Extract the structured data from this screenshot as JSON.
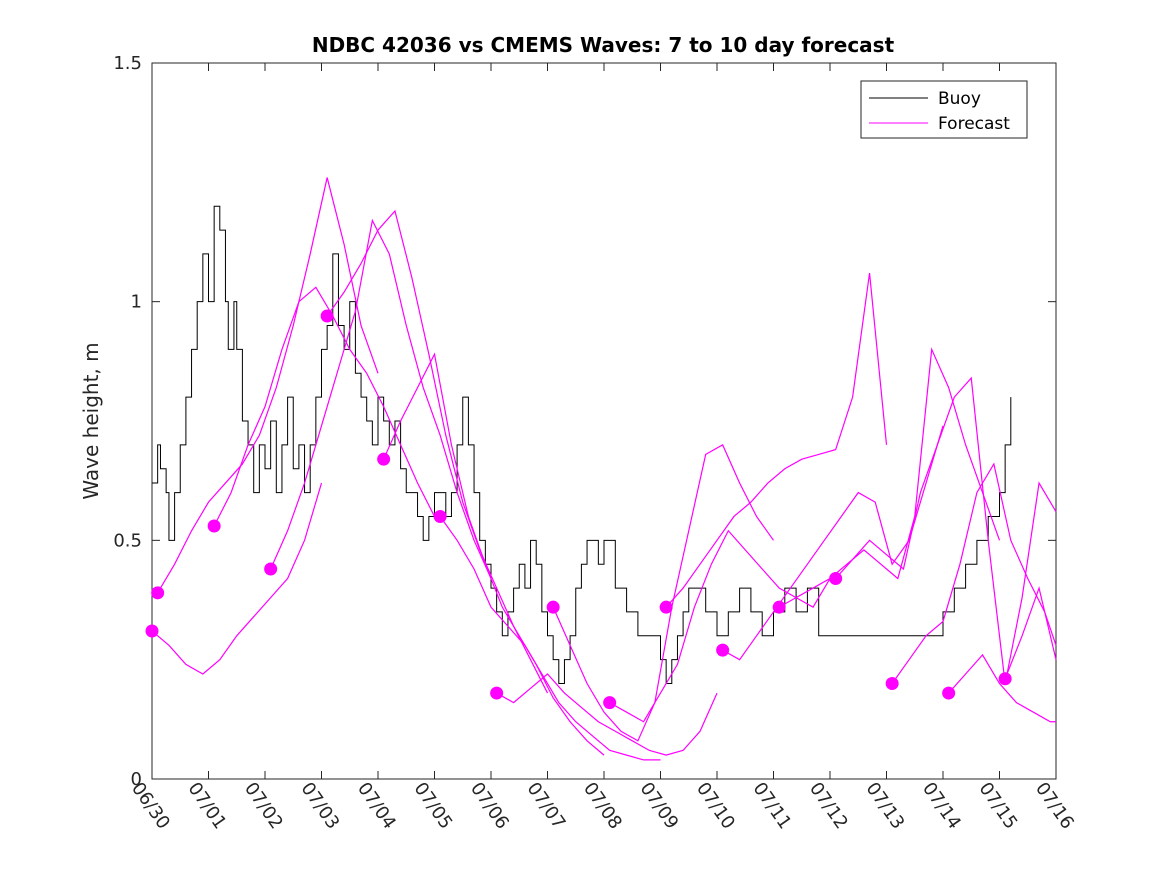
{
  "chart_data": {
    "type": "line",
    "title": "NDBC 42036 vs CMEMS Waves: 7 to 10 day forecast",
    "xlabel": "",
    "ylabel": "Wave height, m",
    "xlim": [
      0,
      16
    ],
    "ylim": [
      0,
      1.5
    ],
    "x_tick_values": [
      0,
      1,
      2,
      3,
      4,
      5,
      6,
      7,
      8,
      9,
      10,
      11,
      12,
      13,
      14,
      15,
      16
    ],
    "x_tick_labels": [
      "06/30",
      "07/01",
      "07/02",
      "07/03",
      "07/04",
      "07/05",
      "07/06",
      "07/07",
      "07/08",
      "07/09",
      "07/10",
      "07/11",
      "07/12",
      "07/13",
      "07/14",
      "07/15",
      "07/16"
    ],
    "y_tick_values": [
      0,
      0.5,
      1,
      1.5
    ],
    "y_tick_labels": [
      "0",
      "0.5",
      "1",
      "1.5"
    ],
    "grid": false,
    "legend_position": "top-right",
    "legend": [
      {
        "label": "Buoy",
        "color": "#000000"
      },
      {
        "label": "Forecast",
        "color": "#ff00ff"
      }
    ],
    "colors": {
      "buoy": "#000000",
      "forecast": "#ff00ff"
    },
    "buoy": {
      "x": [
        0.0,
        0.1,
        0.15,
        0.25,
        0.3,
        0.4,
        0.5,
        0.6,
        0.7,
        0.8,
        0.9,
        1.0,
        1.1,
        1.2,
        1.3,
        1.35,
        1.45,
        1.5,
        1.6,
        1.7,
        1.8,
        1.9,
        2.0,
        2.1,
        2.2,
        2.3,
        2.4,
        2.5,
        2.6,
        2.7,
        2.8,
        2.9,
        3.0,
        3.1,
        3.2,
        3.3,
        3.4,
        3.5,
        3.6,
        3.7,
        3.8,
        3.9,
        4.0,
        4.1,
        4.2,
        4.3,
        4.4,
        4.5,
        4.6,
        4.7,
        4.8,
        4.9,
        5.0,
        5.1,
        5.2,
        5.3,
        5.4,
        5.5,
        5.6,
        5.7,
        5.8,
        5.9,
        6.0,
        6.1,
        6.2,
        6.3,
        6.4,
        6.5,
        6.6,
        6.7,
        6.8,
        6.9,
        7.0,
        7.1,
        7.2,
        7.3,
        7.4,
        7.5,
        7.6,
        7.7,
        7.8,
        7.9,
        8.0,
        8.2,
        8.4,
        8.6,
        8.8,
        9.0,
        9.1,
        9.2,
        9.3,
        9.4,
        9.5,
        9.6,
        9.8,
        10.0,
        10.2,
        10.4,
        10.6,
        10.8,
        11.0,
        11.2,
        11.4,
        11.6,
        11.8,
        12.0,
        12.2,
        12.4,
        12.6,
        12.8,
        13.0,
        13.4,
        13.8,
        14.0,
        14.2,
        14.4,
        14.6,
        14.8,
        15.0,
        15.1,
        15.2
      ],
      "y": [
        0.62,
        0.7,
        0.65,
        0.6,
        0.5,
        0.6,
        0.7,
        0.8,
        0.9,
        1.0,
        1.1,
        1.0,
        1.2,
        1.15,
        1.0,
        0.9,
        1.0,
        0.9,
        0.75,
        0.7,
        0.6,
        0.7,
        0.65,
        0.75,
        0.6,
        0.7,
        0.8,
        0.65,
        0.7,
        0.6,
        0.7,
        0.8,
        0.9,
        0.95,
        1.1,
        0.95,
        0.9,
        1.0,
        0.85,
        0.8,
        0.75,
        0.7,
        0.8,
        0.75,
        0.7,
        0.75,
        0.65,
        0.6,
        0.6,
        0.55,
        0.5,
        0.55,
        0.6,
        0.6,
        0.55,
        0.6,
        0.7,
        0.8,
        0.7,
        0.6,
        0.5,
        0.45,
        0.4,
        0.35,
        0.3,
        0.35,
        0.4,
        0.45,
        0.4,
        0.5,
        0.45,
        0.35,
        0.3,
        0.25,
        0.2,
        0.25,
        0.3,
        0.4,
        0.45,
        0.5,
        0.5,
        0.45,
        0.5,
        0.4,
        0.35,
        0.3,
        0.3,
        0.25,
        0.2,
        0.25,
        0.3,
        0.35,
        0.4,
        0.4,
        0.35,
        0.3,
        0.35,
        0.4,
        0.35,
        0.3,
        0.35,
        0.4,
        0.35,
        0.4,
        0.3,
        0.3,
        0.3,
        0.3,
        0.3,
        0.3,
        0.3,
        0.3,
        0.3,
        0.35,
        0.4,
        0.45,
        0.5,
        0.55,
        0.6,
        0.7,
        0.8
      ]
    },
    "forecast": [
      {
        "x": [
          0.0,
          0.3,
          0.6,
          0.9,
          1.2,
          1.5,
          1.8,
          2.1,
          2.4,
          2.7,
          3.0
        ],
        "y": [
          0.31,
          0.28,
          0.24,
          0.22,
          0.25,
          0.3,
          0.34,
          0.38,
          0.42,
          0.5,
          0.62
        ]
      },
      {
        "x": [
          0.1,
          0.4,
          0.7,
          1.0,
          1.3,
          1.6,
          1.9,
          2.2,
          2.5,
          2.8,
          3.1,
          3.4,
          3.7,
          4.0
        ],
        "y": [
          0.39,
          0.45,
          0.52,
          0.58,
          0.62,
          0.66,
          0.72,
          0.82,
          0.95,
          1.1,
          1.26,
          1.12,
          0.95,
          0.85
        ]
      },
      {
        "x": [
          1.1,
          1.4,
          1.7,
          2.0,
          2.3,
          2.6,
          2.9,
          3.2,
          3.5,
          3.8,
          4.1,
          4.4,
          4.7,
          5.0
        ],
        "y": [
          0.53,
          0.6,
          0.7,
          0.78,
          0.9,
          1.0,
          1.03,
          0.97,
          0.9,
          0.85,
          0.78,
          0.7,
          0.62,
          0.55
        ]
      },
      {
        "x": [
          2.1,
          2.4,
          2.7,
          3.0,
          3.3,
          3.6,
          3.9,
          4.2,
          4.5,
          4.8,
          5.1,
          5.4,
          5.7,
          6.0
        ],
        "y": [
          0.44,
          0.52,
          0.62,
          0.74,
          0.86,
          0.98,
          1.17,
          1.1,
          0.95,
          0.82,
          0.72,
          0.6,
          0.5,
          0.42
        ]
      },
      {
        "x": [
          3.1,
          3.4,
          3.7,
          4.0,
          4.3,
          4.6,
          4.9,
          5.2,
          5.5,
          5.8,
          6.1,
          6.4,
          6.7,
          7.0
        ],
        "y": [
          0.97,
          1.02,
          1.08,
          1.15,
          1.19,
          1.05,
          0.89,
          0.72,
          0.58,
          0.48,
          0.4,
          0.32,
          0.25,
          0.18
        ]
      },
      {
        "x": [
          4.1,
          4.4,
          4.7,
          5.0,
          5.3,
          5.6,
          5.9,
          6.2,
          6.5,
          6.8,
          7.1,
          7.4,
          7.7,
          8.0
        ],
        "y": [
          0.67,
          0.75,
          0.82,
          0.89,
          0.7,
          0.55,
          0.45,
          0.36,
          0.3,
          0.24,
          0.17,
          0.12,
          0.08,
          0.05
        ]
      },
      {
        "x": [
          5.1,
          5.4,
          5.7,
          6.0,
          6.3,
          6.6,
          6.9,
          7.2,
          7.5,
          7.8,
          8.1,
          8.4,
          8.7,
          9.0
        ],
        "y": [
          0.55,
          0.5,
          0.44,
          0.36,
          0.32,
          0.28,
          0.22,
          0.16,
          0.12,
          0.09,
          0.06,
          0.05,
          0.04,
          0.04
        ]
      },
      {
        "x": [
          6.1,
          6.4,
          6.7,
          7.0,
          7.3,
          7.6,
          7.9,
          8.2,
          8.5,
          8.8,
          9.1,
          9.4,
          9.7,
          10.0
        ],
        "y": [
          0.18,
          0.16,
          0.19,
          0.22,
          0.18,
          0.15,
          0.12,
          0.1,
          0.08,
          0.06,
          0.05,
          0.06,
          0.1,
          0.18
        ]
      },
      {
        "x": [
          7.1,
          7.4,
          7.7,
          8.0,
          8.3,
          8.6,
          8.9,
          9.2,
          9.5,
          9.8,
          10.1,
          10.4,
          10.7,
          11.0
        ],
        "y": [
          0.36,
          0.28,
          0.2,
          0.14,
          0.1,
          0.08,
          0.16,
          0.36,
          0.52,
          0.68,
          0.7,
          0.62,
          0.55,
          0.5
        ]
      },
      {
        "x": [
          8.1,
          8.4,
          8.7,
          9.0,
          9.3,
          9.6,
          9.9,
          10.2,
          10.5,
          10.8,
          11.1,
          11.4,
          11.7,
          12.0
        ],
        "y": [
          0.16,
          0.14,
          0.12,
          0.18,
          0.24,
          0.36,
          0.45,
          0.52,
          0.48,
          0.44,
          0.4,
          0.38,
          0.36,
          0.42
        ]
      },
      {
        "x": [
          9.1,
          9.4,
          9.7,
          10.0,
          10.3,
          10.6,
          10.9,
          11.2,
          11.5,
          11.8,
          12.1,
          12.4,
          12.7,
          13.0
        ],
        "y": [
          0.36,
          0.4,
          0.45,
          0.5,
          0.55,
          0.58,
          0.62,
          0.65,
          0.67,
          0.68,
          0.69,
          0.8,
          1.06,
          0.7
        ]
      },
      {
        "x": [
          10.1,
          10.4,
          10.7,
          11.0,
          11.3,
          11.6,
          11.9,
          12.2,
          12.5,
          12.8,
          13.1,
          13.4,
          13.7,
          14.0
        ],
        "y": [
          0.27,
          0.25,
          0.3,
          0.35,
          0.4,
          0.45,
          0.5,
          0.55,
          0.6,
          0.58,
          0.45,
          0.5,
          0.62,
          0.74
        ]
      },
      {
        "x": [
          11.1,
          11.4,
          11.7,
          12.0,
          12.3,
          12.6,
          12.9,
          13.2,
          13.5,
          13.8,
          14.1,
          14.4,
          14.7,
          15.0
        ],
        "y": [
          0.36,
          0.38,
          0.4,
          0.42,
          0.45,
          0.48,
          0.45,
          0.42,
          0.55,
          0.9,
          0.82,
          0.7,
          0.6,
          0.5
        ]
      },
      {
        "x": [
          12.1,
          12.4,
          12.7,
          13.0,
          13.3,
          13.6,
          13.9,
          14.2,
          14.5,
          14.8,
          15.1,
          15.4,
          15.7,
          16.0
        ],
        "y": [
          0.42,
          0.46,
          0.5,
          0.47,
          0.44,
          0.6,
          0.7,
          0.8,
          0.84,
          0.5,
          0.2,
          0.38,
          0.62,
          0.56
        ]
      },
      {
        "x": [
          13.1,
          13.4,
          13.7,
          14.0,
          14.3,
          14.6,
          14.9,
          15.2,
          15.5,
          15.8,
          16.0
        ],
        "y": [
          0.2,
          0.25,
          0.3,
          0.33,
          0.45,
          0.6,
          0.66,
          0.5,
          0.42,
          0.35,
          0.28
        ]
      },
      {
        "x": [
          14.1,
          14.4,
          14.7,
          15.0,
          15.3,
          15.6,
          15.9,
          16.0
        ],
        "y": [
          0.18,
          0.22,
          0.26,
          0.2,
          0.16,
          0.14,
          0.12,
          0.12
        ]
      },
      {
        "x": [
          15.1,
          15.4,
          15.7,
          16.0
        ],
        "y": [
          0.21,
          0.3,
          0.4,
          0.25
        ]
      }
    ]
  }
}
